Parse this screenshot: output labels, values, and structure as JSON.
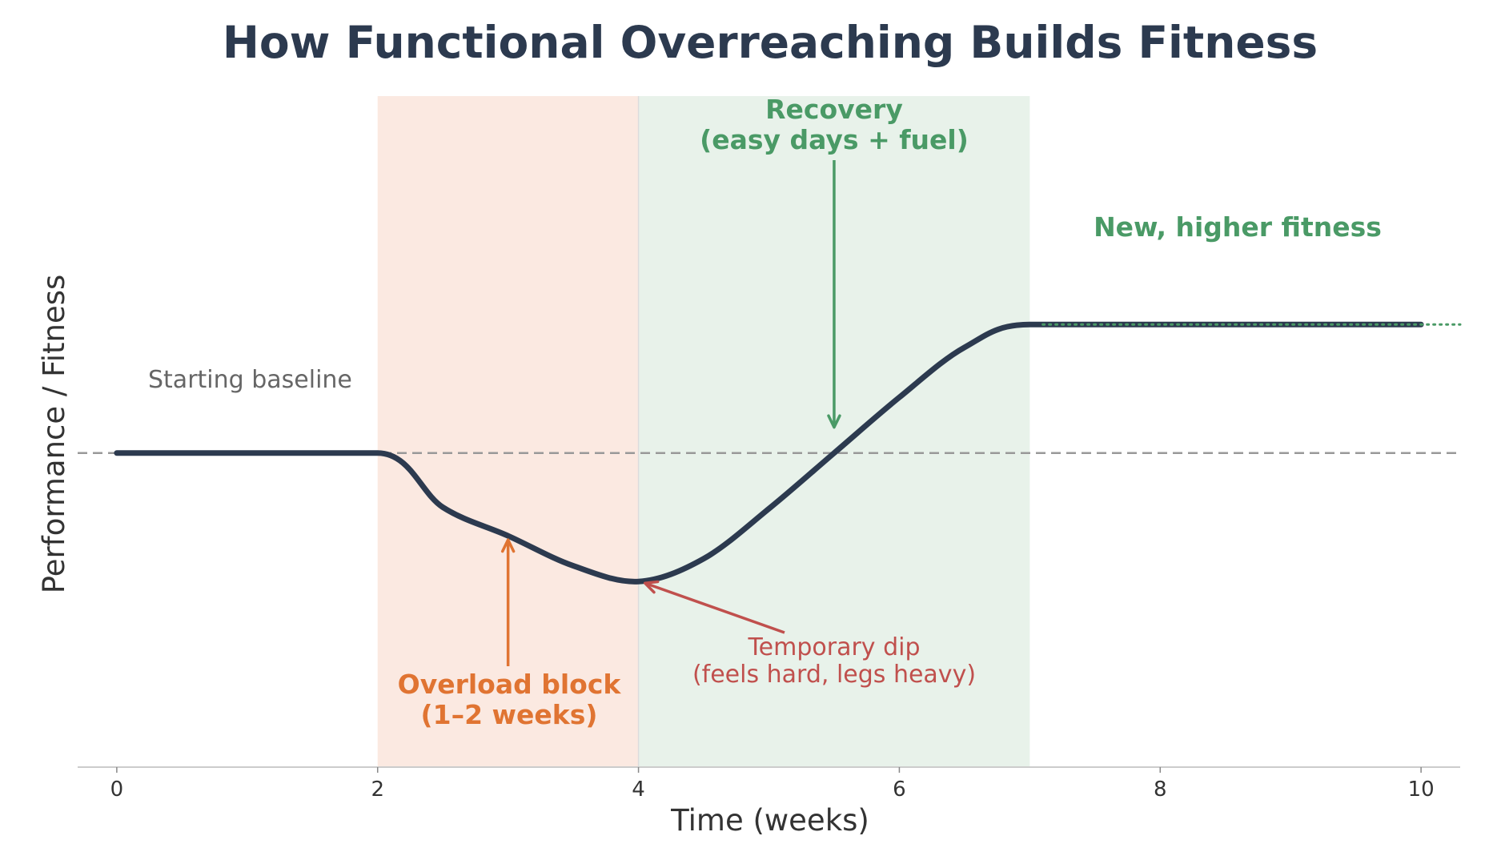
{
  "chart_data": {
    "type": "line",
    "title": "How Functional Overreaching Builds Fitness",
    "xlabel": "Time (weeks)",
    "ylabel": "Performance / Fitness",
    "xlim": [
      -0.3,
      10.3
    ],
    "ylim": [
      0.63,
      1.1
    ],
    "xticks": [
      "0",
      "2",
      "4",
      "6",
      "8",
      "10"
    ],
    "grid": false,
    "baseline": 0.85,
    "series": [
      {
        "x": [
          0,
          1,
          2,
          2.5,
          3,
          3.5,
          4,
          4.5,
          5,
          5.5,
          6,
          6.5,
          7,
          8,
          9,
          10
        ],
        "y": [
          0.85,
          0.85,
          0.85,
          0.812,
          0.792,
          0.771,
          0.76,
          0.776,
          0.811,
          0.85,
          0.889,
          0.924,
          0.94,
          0.94,
          0.94,
          0.94
        ]
      }
    ],
    "shaded_regions": [
      {
        "x_start": 2,
        "x_end": 4,
        "color": "#fbe9e1"
      },
      {
        "x_start": 4,
        "x_end": 7,
        "color": "#e8f2ea"
      }
    ],
    "annotations": [
      {
        "id": "baseline",
        "lines": [
          "Starting baseline"
        ],
        "color": "#666666"
      },
      {
        "id": "overload",
        "lines": [
          "Overload block",
          "(1–2 weeks)"
        ],
        "color": "#e07432",
        "arrow_to": [
          3,
          0.792
        ]
      },
      {
        "id": "dip",
        "lines": [
          "Temporary dip",
          "(feels hard, legs heavy)"
        ],
        "color": "#c0504d",
        "arrow_to": [
          4.05,
          0.76
        ]
      },
      {
        "id": "recovery",
        "lines": [
          "Recovery",
          "(easy days + fuel)"
        ],
        "color": "#4a9a66",
        "arrow_to": [
          5.5,
          0.868
        ]
      },
      {
        "id": "newfit",
        "lines": [
          "New, higher fitness"
        ],
        "color": "#4a9a66"
      }
    ]
  },
  "colors": {
    "line": "#2c3a4f",
    "title": "#2c3a4f",
    "baseline_dash": "#999999",
    "axis": "#cccccc",
    "dotted_continuation": "#4a9a66"
  }
}
